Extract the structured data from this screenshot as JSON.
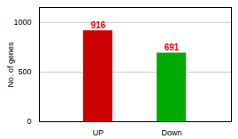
{
  "chart_data": {
    "type": "bar",
    "categories": [
      "UP",
      "Down"
    ],
    "values": [
      916,
      691
    ],
    "colors": [
      "#cc0000",
      "#00aa00"
    ],
    "ylabel": "No. of genes",
    "ylim": [
      0,
      1150
    ],
    "yticks": [
      0,
      500,
      1000
    ],
    "grid": true,
    "data_labels": true
  }
}
